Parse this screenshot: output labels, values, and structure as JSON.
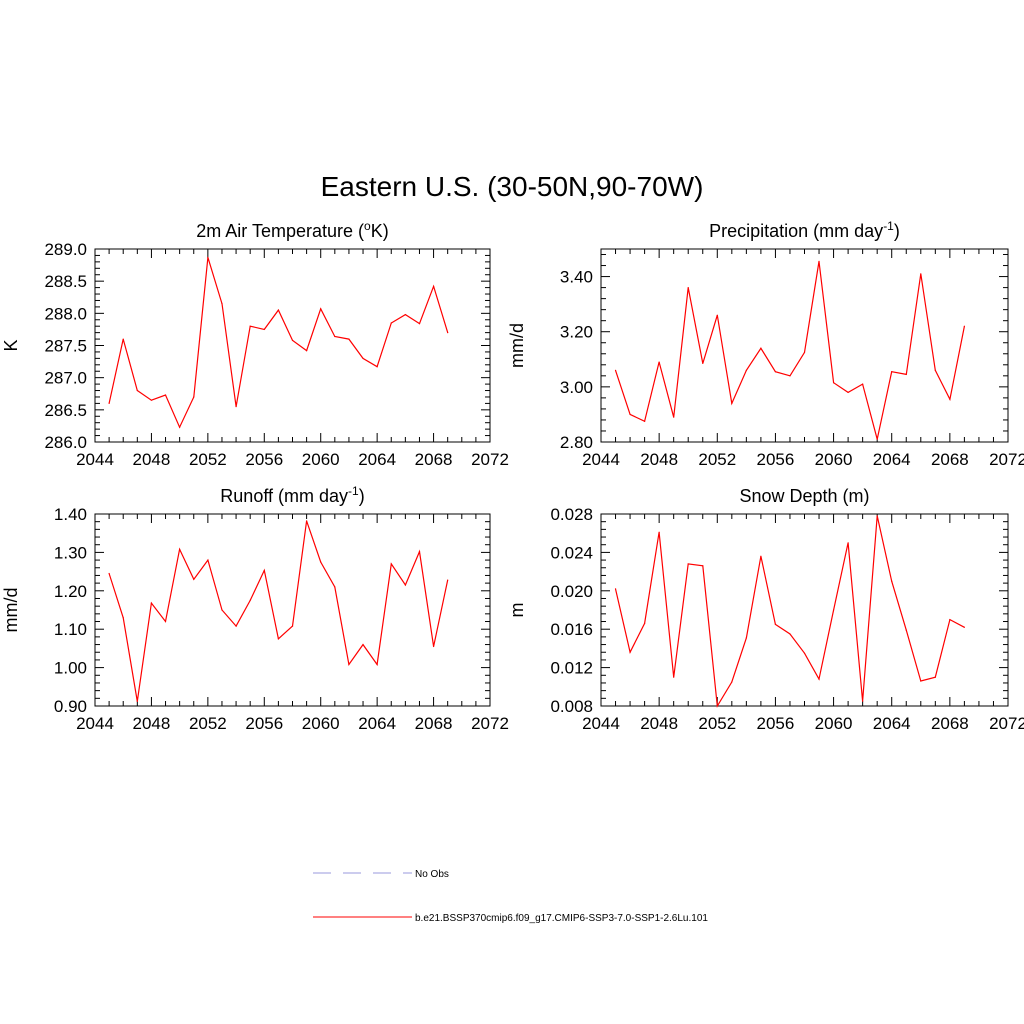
{
  "title": "Eastern U.S. (30-50N,90-70W)",
  "colors": {
    "series": "#ff0000",
    "obs": "#9999dd",
    "axis": "#000000"
  },
  "legend": [
    {
      "label": "No Obs",
      "style": "dashed",
      "color": "#9999dd"
    },
    {
      "label": "b.e21.BSSP370cmip6.f09_g17.CMIP6-SSP3-7.0-SSP1-2.6Lu.101",
      "style": "solid",
      "color": "#ff0000"
    }
  ],
  "chart_data": [
    {
      "type": "line",
      "title": "2m Air Temperature (",
      "title_sup": "o",
      "title_end": "K)",
      "ylabel": "K",
      "xlim": [
        2044,
        2072
      ],
      "xticks": [
        "2044",
        "2048",
        "2052",
        "2056",
        "2060",
        "2064",
        "2068",
        "2072"
      ],
      "ylim": [
        286.0,
        289.0
      ],
      "yticks": [
        "286.0",
        "286.5",
        "287.0",
        "287.5",
        "288.0",
        "288.5",
        "289.0"
      ],
      "x": [
        2045,
        2046,
        2047,
        2048,
        2049,
        2050,
        2051,
        2052,
        2053,
        2054,
        2055,
        2056,
        2057,
        2058,
        2059,
        2060,
        2061,
        2062,
        2063,
        2064,
        2065,
        2066,
        2067,
        2068,
        2069
      ],
      "series": [
        {
          "values": [
            286.6,
            287.6,
            286.8,
            286.65,
            286.73,
            286.23,
            286.7,
            288.87,
            288.15,
            286.55,
            287.8,
            287.75,
            288.05,
            287.58,
            287.42,
            288.07,
            287.64,
            287.6,
            287.3,
            287.17,
            287.85,
            287.98,
            287.84,
            288.42,
            287.7
          ]
        }
      ]
    },
    {
      "type": "line",
      "title": "Precipitation (mm day",
      "title_sup": "-1",
      "title_end": ")",
      "ylabel": "mm/d",
      "xlim": [
        2044,
        2072
      ],
      "xticks": [
        "2044",
        "2048",
        "2052",
        "2056",
        "2060",
        "2064",
        "2068",
        "2072"
      ],
      "ylim": [
        2.8,
        3.5
      ],
      "yticks": [
        "2.80",
        "3.00",
        "3.20",
        "3.40"
      ],
      "ytick_values": [
        2.8,
        3.0,
        3.2,
        3.4
      ],
      "x": [
        2045,
        2046,
        2047,
        2048,
        2049,
        2050,
        2051,
        2052,
        2053,
        2054,
        2055,
        2056,
        2057,
        2058,
        2059,
        2060,
        2061,
        2062,
        2063,
        2064,
        2065,
        2066,
        2067,
        2068,
        2069
      ],
      "series": [
        {
          "values": [
            3.06,
            2.9,
            2.875,
            3.09,
            2.89,
            3.36,
            3.085,
            3.26,
            2.94,
            3.06,
            3.14,
            3.055,
            3.04,
            3.125,
            3.455,
            3.015,
            2.98,
            3.01,
            2.81,
            3.055,
            3.045,
            3.41,
            3.06,
            2.955,
            3.22
          ]
        }
      ]
    },
    {
      "type": "line",
      "title": "Runoff (mm day",
      "title_sup": "-1",
      "title_end": ")",
      "ylabel": "mm/d",
      "xlim": [
        2044,
        2072
      ],
      "xticks": [
        "2044",
        "2048",
        "2052",
        "2056",
        "2060",
        "2064",
        "2068",
        "2072"
      ],
      "ylim": [
        0.9,
        1.4
      ],
      "yticks": [
        "0.90",
        "1.00",
        "1.10",
        "1.20",
        "1.30",
        "1.40"
      ],
      "x": [
        2045,
        2046,
        2047,
        2048,
        2049,
        2050,
        2051,
        2052,
        2053,
        2054,
        2055,
        2056,
        2057,
        2058,
        2059,
        2060,
        2061,
        2062,
        2063,
        2064,
        2065,
        2066,
        2067,
        2068,
        2069
      ],
      "series": [
        {
          "values": [
            1.245,
            1.13,
            0.912,
            1.168,
            1.12,
            1.308,
            1.23,
            1.28,
            1.15,
            1.108,
            1.175,
            1.253,
            1.075,
            1.108,
            1.382,
            1.275,
            1.21,
            1.008,
            1.06,
            1.008,
            1.27,
            1.215,
            1.302,
            1.055,
            1.228
          ]
        }
      ]
    },
    {
      "type": "line",
      "title": "Snow Depth (m)",
      "title_sup": "",
      "title_end": "",
      "ylabel": "m",
      "xlim": [
        2044,
        2072
      ],
      "xticks": [
        "2044",
        "2048",
        "2052",
        "2056",
        "2060",
        "2064",
        "2068",
        "2072"
      ],
      "ylim": [
        0.008,
        0.028
      ],
      "yticks": [
        "0.008",
        "0.012",
        "0.016",
        "0.020",
        "0.024",
        "0.028"
      ],
      "x": [
        2045,
        2046,
        2047,
        2048,
        2049,
        2050,
        2051,
        2052,
        2053,
        2054,
        2055,
        2056,
        2057,
        2058,
        2059,
        2060,
        2061,
        2062,
        2063,
        2064,
        2065,
        2066,
        2067,
        2068,
        2069
      ],
      "series": [
        {
          "values": [
            0.0202,
            0.0136,
            0.0166,
            0.0261,
            0.011,
            0.0228,
            0.0226,
            0.008,
            0.0105,
            0.0151,
            0.0236,
            0.0165,
            0.0155,
            0.0135,
            0.0108,
            0.018,
            0.025,
            0.0085,
            0.0278,
            0.021,
            0.0159,
            0.0106,
            0.011,
            0.017,
            0.0162
          ]
        }
      ]
    }
  ]
}
